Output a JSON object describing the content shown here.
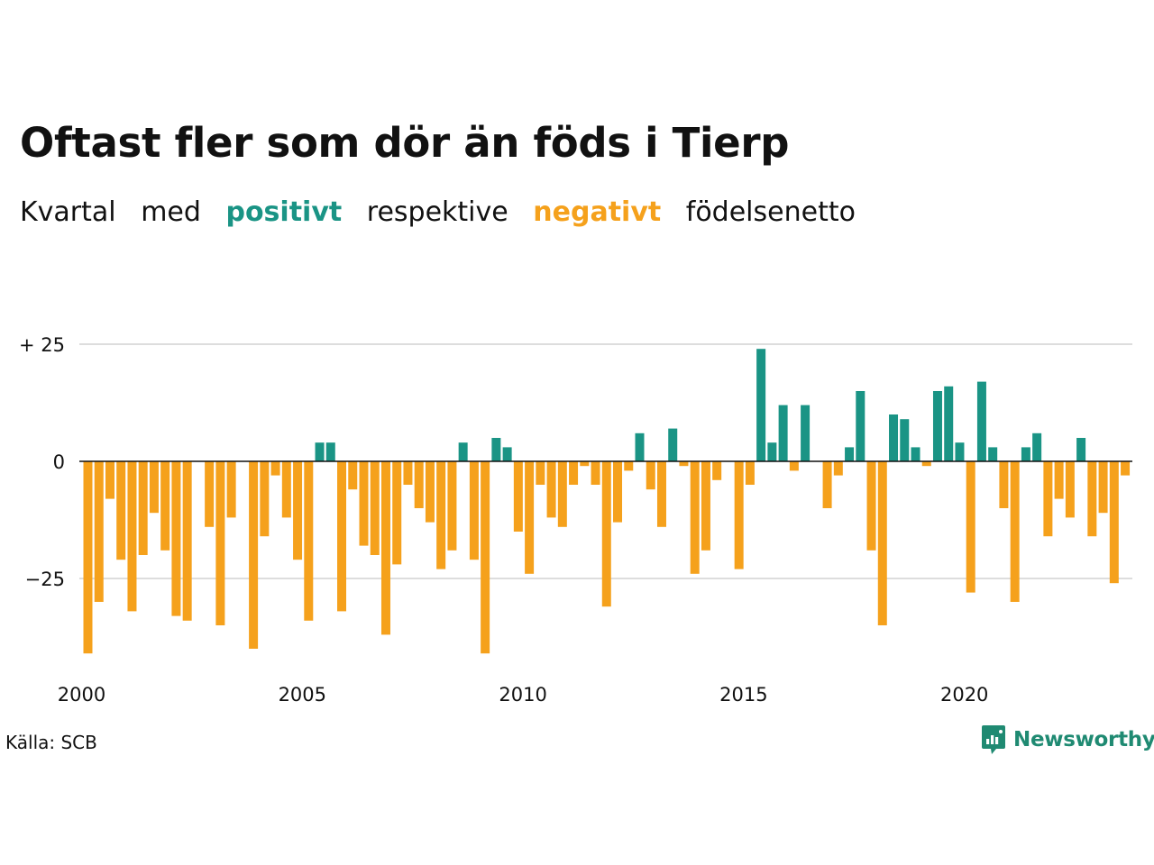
{
  "title": "Oftast fler som dör än föds i Tierp",
  "subtitle": {
    "part1": "Kvartal",
    "part2": "med",
    "positive": "positivt",
    "part3": "respektive",
    "negative": "negativt",
    "part4": "födelsenetto"
  },
  "source": "Källa: SCB",
  "brand": "Newsworthy",
  "colors": {
    "positive": "#1a9485",
    "negative": "#f5a11c",
    "grid": "#dddddd",
    "brand": "#1f8a72"
  },
  "chart_data": {
    "type": "bar",
    "start_year": 2000,
    "x_ticks": [
      {
        "year": 2000,
        "label": "2000"
      },
      {
        "year": 2005,
        "label": "2005"
      },
      {
        "year": 2010,
        "label": "2010"
      },
      {
        "year": 2015,
        "label": "2015"
      },
      {
        "year": 2020,
        "label": "2020"
      }
    ],
    "y_ticks": [
      {
        "value": 25,
        "label": "+ 25"
      },
      {
        "value": 0,
        "label": "0"
      },
      {
        "value": -25,
        "label": "−25"
      }
    ],
    "ylim": [
      -43,
      25
    ],
    "grid": true,
    "values": [
      -41,
      -30,
      -8,
      -21,
      -32,
      -20,
      -11,
      -19,
      -33,
      -34,
      0,
      -14,
      -35,
      -12,
      0,
      -40,
      -16,
      -3,
      -12,
      -21,
      -34,
      4,
      4,
      -32,
      -6,
      -18,
      -20,
      -37,
      -22,
      -5,
      -10,
      -13,
      -23,
      -19,
      4,
      -21,
      -41,
      5,
      3,
      -15,
      -24,
      -5,
      -12,
      -14,
      -5,
      -1,
      -5,
      -31,
      -13,
      -2,
      6,
      -6,
      -14,
      7,
      -1,
      -24,
      -19,
      -4,
      0,
      -23,
      -5,
      24,
      4,
      12,
      -2,
      12,
      0,
      -10,
      -3,
      3,
      15,
      -19,
      -35,
      10,
      9,
      3,
      -1,
      15,
      16,
      4,
      -28,
      17,
      3,
      -10,
      -30,
      3,
      6,
      -16,
      -8,
      -12,
      5,
      -16,
      -11,
      -26,
      -3
    ]
  }
}
